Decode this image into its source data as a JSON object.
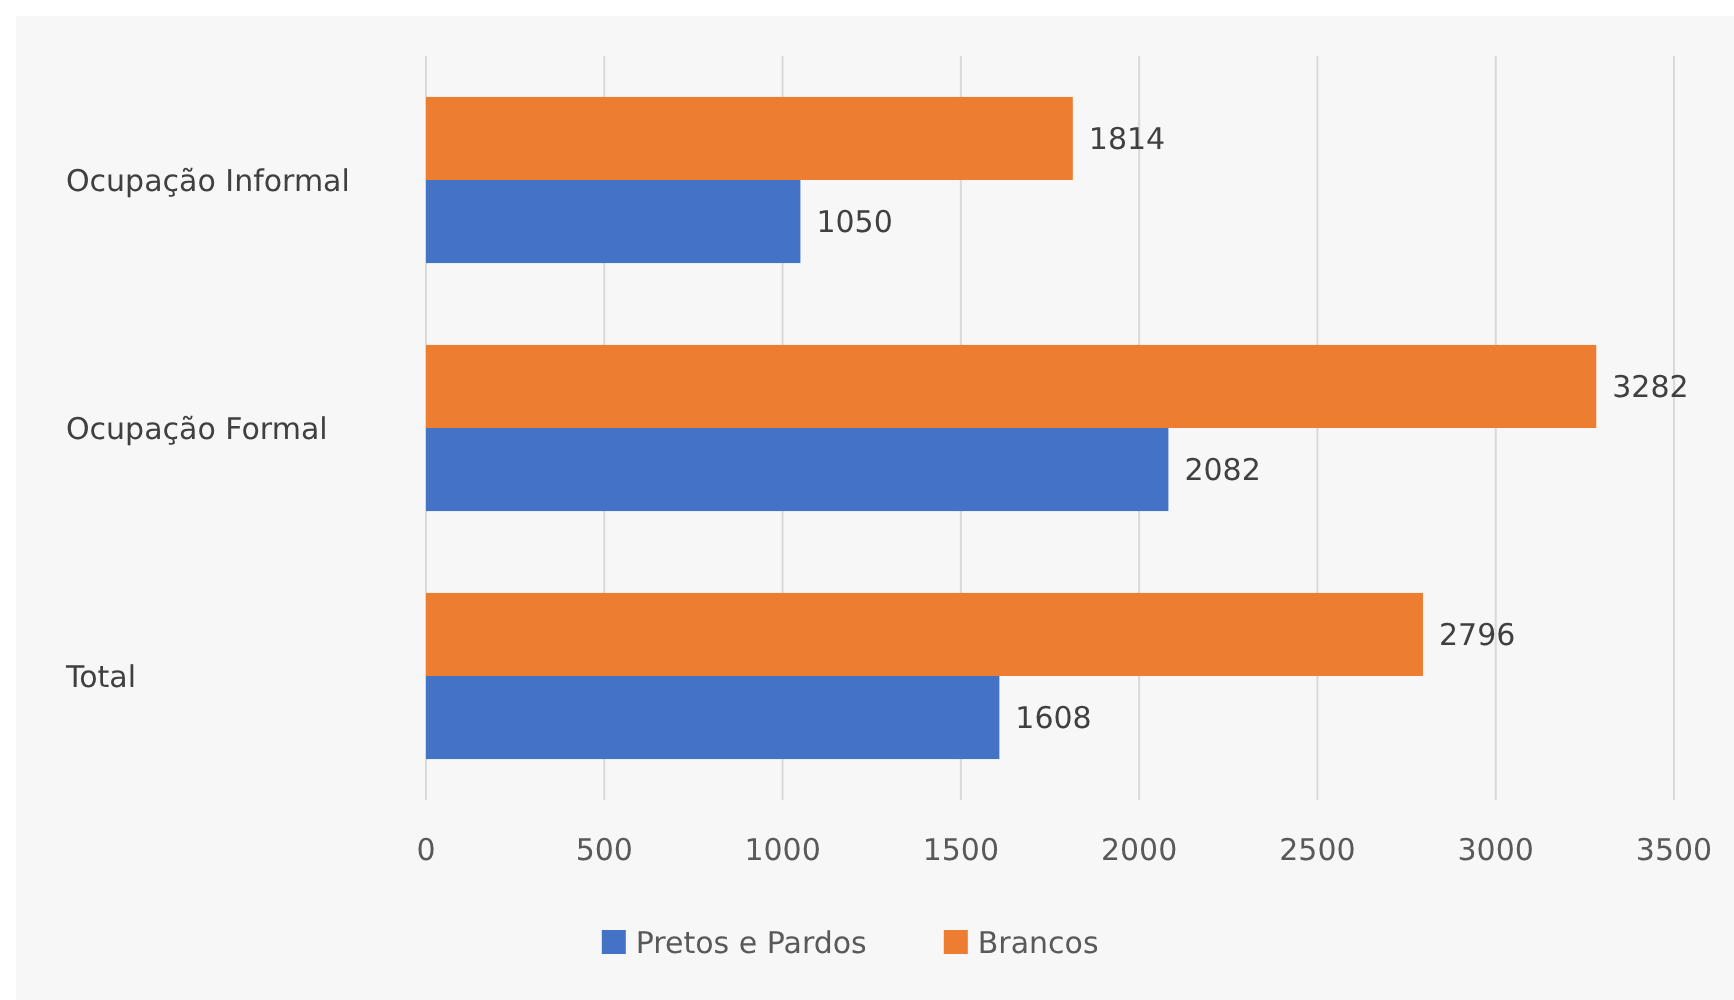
{
  "chart_data": {
    "type": "bar",
    "orientation": "horizontal",
    "categories": [
      "Ocupação Informal",
      "Ocupação Formal",
      "Total"
    ],
    "series": [
      {
        "name": "Pretos e Pardos",
        "color": "#4472c4",
        "values": [
          1050,
          2082,
          1608
        ]
      },
      {
        "name": "Brancos",
        "color": "#ed7d31",
        "values": [
          1814,
          3282,
          2796
        ]
      }
    ],
    "xlim": [
      0,
      3500
    ],
    "xticks": [
      0,
      500,
      1000,
      1500,
      2000,
      2500,
      3000,
      3500
    ],
    "grid": "x",
    "legend": "bottom",
    "data_labels": true
  }
}
